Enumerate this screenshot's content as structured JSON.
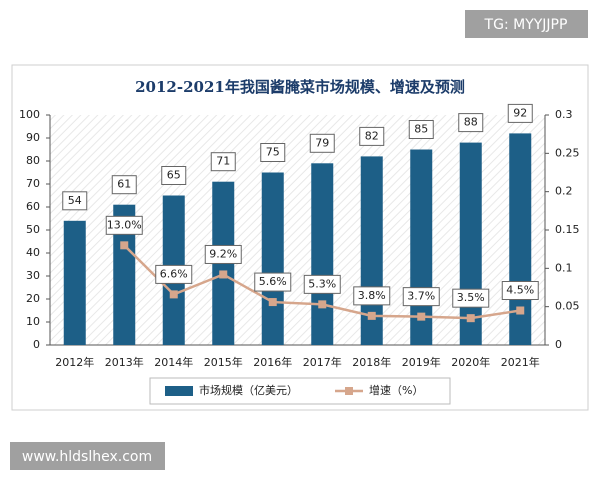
{
  "watermark": "TG: MYYJJPP",
  "footer": "www.hldslhex.com",
  "chart_data": {
    "type": "bar",
    "title": "2012-2021年我国酱腌菜市场规模、增速及预测",
    "categories": [
      "2012年",
      "2013年",
      "2014年",
      "2015年",
      "2016年",
      "2017年",
      "2018年",
      "2019年",
      "2020年",
      "2021年"
    ],
    "series": [
      {
        "name": "市场规模（亿美元）",
        "type": "bar",
        "color": "#1d5f87",
        "values": [
          54,
          61,
          65,
          71,
          75,
          79,
          82,
          85,
          88,
          92
        ]
      },
      {
        "name": "增速（%）",
        "type": "line",
        "axis": "y2",
        "color": "#d6a68c",
        "values": [
          null,
          0.13,
          0.066,
          0.092,
          0.056,
          0.053,
          0.038,
          0.037,
          0.035,
          0.045
        ],
        "value_labels": [
          null,
          "13.0%",
          "6.6%",
          "9.2%",
          "5.6%",
          "5.3%",
          "3.8%",
          "3.7%",
          "3.5%",
          "4.5%"
        ]
      }
    ],
    "ylim": [
      0,
      100
    ],
    "yticks": [
      0,
      10,
      20,
      30,
      40,
      50,
      60,
      70,
      80,
      90,
      100
    ],
    "y2lim": [
      0,
      0.3
    ],
    "y2ticks": [
      0,
      0.05,
      0.1,
      0.15,
      0.2,
      0.25,
      0.3
    ]
  }
}
